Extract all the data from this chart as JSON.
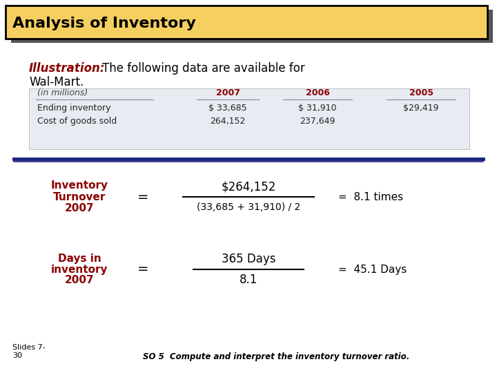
{
  "title": "Analysis of Inventory",
  "title_bg": "#F5D060",
  "title_color": "#000000",
  "illustration_label": "Illustration:",
  "illustration_label_color": "#8B0000",
  "table_bg": "#E8EBF2",
  "table_header_row": [
    "(in millions)",
    "2007",
    "2006",
    "2005"
  ],
  "table_row1": [
    "Ending inventory",
    "$ 33,685",
    "$ 31,910",
    "$29,419"
  ],
  "table_row2": [
    "Cost of goods sold",
    "264,152",
    "237,649",
    ""
  ],
  "calc_label_color": "#8B0000",
  "calc_label1_line1": "Inventory",
  "calc_label1_line2": "Turnover",
  "calc_label1_line3": "2007",
  "calc1_numerator": "$264,152",
  "calc1_denominator": "(33,685 + 31,910) / 2",
  "calc1_result": "=  8.1 times",
  "calc_label2_line1": "Days in",
  "calc_label2_line2": "inventory",
  "calc_label2_line3": "2007",
  "calc2_numerator": "365 Days",
  "calc2_denominator": "8.1",
  "calc2_result": "=  45.1 Days",
  "footer_left": "Slides 7-\n30",
  "footer_right": "SO 5  Compute and interpret the inventory turnover ratio.",
  "divider_color": "#1a237e",
  "bg_color": "#FFFFFF",
  "shadow_color": "#555555"
}
